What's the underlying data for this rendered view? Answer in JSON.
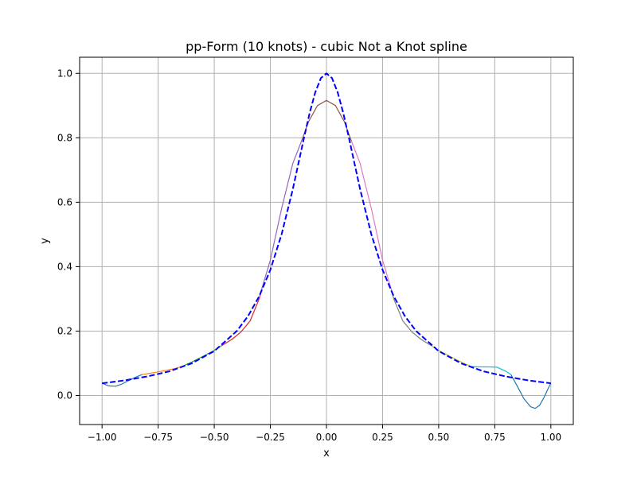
{
  "chart_data": {
    "type": "line",
    "title": "pp-Form (10 knots) - cubic Not a Knot spline",
    "xlabel": "x",
    "ylabel": "y",
    "xlim": [
      -1.1,
      1.1
    ],
    "ylim": [
      -0.09,
      1.05
    ],
    "grid": true,
    "x_ticks": [
      -1.0,
      -0.75,
      -0.5,
      -0.25,
      0.0,
      0.25,
      0.5,
      0.75,
      1.0
    ],
    "x_tick_labels": [
      "−1.00",
      "−0.75",
      "−0.50",
      "−0.25",
      "0.00",
      "0.25",
      "0.50",
      "0.75",
      "1.00"
    ],
    "y_ticks": [
      0.0,
      0.2,
      0.4,
      0.6,
      0.8,
      1.0
    ],
    "y_tick_labels": [
      "0.0",
      "0.2",
      "0.4",
      "0.6",
      "0.8",
      "1.0"
    ],
    "reference": {
      "color": "#0000ff",
      "dashed": true,
      "x": [
        -1.0,
        -0.9,
        -0.8,
        -0.7,
        -0.6,
        -0.5,
        -0.4,
        -0.35,
        -0.3,
        -0.25,
        -0.2,
        -0.15,
        -0.1,
        -0.075,
        -0.05,
        -0.025,
        0.0,
        0.025,
        0.05,
        0.075,
        0.1,
        0.15,
        0.2,
        0.25,
        0.3,
        0.35,
        0.4,
        0.5,
        0.6,
        0.7,
        0.8,
        0.9,
        1.0
      ],
      "y": [
        0.038,
        0.047,
        0.059,
        0.075,
        0.1,
        0.138,
        0.2,
        0.246,
        0.308,
        0.39,
        0.5,
        0.64,
        0.8,
        0.877,
        0.941,
        0.985,
        1.0,
        0.985,
        0.941,
        0.877,
        0.8,
        0.64,
        0.5,
        0.39,
        0.308,
        0.246,
        0.2,
        0.138,
        0.1,
        0.075,
        0.059,
        0.047,
        0.038
      ]
    },
    "series": [
      {
        "color": "#1f77b4",
        "x": [
          -1.0,
          -0.97,
          -0.94,
          -0.91,
          -0.88,
          -0.85,
          -0.8222
        ],
        "y": [
          0.038,
          0.03,
          0.029,
          0.036,
          0.047,
          0.057,
          0.065
        ]
      },
      {
        "color": "#ff7f0e",
        "x": [
          -0.8222,
          -0.78,
          -0.73,
          -0.68,
          -0.6444
        ],
        "y": [
          0.065,
          0.07,
          0.076,
          0.083,
          0.09
        ]
      },
      {
        "color": "#2ca02c",
        "x": [
          -0.6444,
          -0.6,
          -0.55,
          -0.5,
          -0.4667
        ],
        "y": [
          0.09,
          0.104,
          0.122,
          0.14,
          0.155
        ]
      },
      {
        "color": "#d62728",
        "x": [
          -0.4667,
          -0.42,
          -0.38,
          -0.34,
          -0.3,
          -0.2889
        ],
        "y": [
          0.155,
          0.175,
          0.198,
          0.232,
          0.3,
          0.33
        ]
      },
      {
        "color": "#9467bd",
        "x": [
          -0.2889,
          -0.25,
          -0.2,
          -0.15,
          -0.1111
        ],
        "y": [
          0.33,
          0.42,
          0.58,
          0.72,
          0.79
        ]
      },
      {
        "color": "#8c564b",
        "x": [
          -0.1111,
          -0.08,
          -0.04,
          0.0,
          0.04,
          0.08,
          0.1111
        ],
        "y": [
          0.79,
          0.85,
          0.9,
          0.916,
          0.9,
          0.85,
          0.79
        ]
      },
      {
        "color": "#e377c2",
        "x": [
          0.1111,
          0.15,
          0.2,
          0.25,
          0.2889
        ],
        "y": [
          0.79,
          0.72,
          0.58,
          0.42,
          0.33
        ]
      },
      {
        "color": "#7f7f7f",
        "x": [
          0.2889,
          0.3,
          0.34,
          0.38,
          0.42,
          0.4667
        ],
        "y": [
          0.33,
          0.3,
          0.232,
          0.198,
          0.175,
          0.155
        ]
      },
      {
        "color": "#bcbd22",
        "x": [
          0.4667,
          0.5,
          0.55,
          0.6,
          0.6444
        ],
        "y": [
          0.155,
          0.14,
          0.122,
          0.104,
          0.09
        ]
      },
      {
        "color": "#17becf",
        "x": [
          0.6444,
          0.68,
          0.72,
          0.76,
          0.8,
          0.8222
        ],
        "y": [
          0.09,
          0.089,
          0.089,
          0.088,
          0.075,
          0.065
        ]
      },
      {
        "color": "#1f77b4",
        "x": [
          0.8222,
          0.85,
          0.88,
          0.91,
          0.93,
          0.95,
          0.97,
          0.99,
          1.0
        ],
        "y": [
          0.065,
          0.03,
          -0.01,
          -0.035,
          -0.04,
          -0.03,
          -0.005,
          0.025,
          0.038
        ]
      }
    ]
  }
}
